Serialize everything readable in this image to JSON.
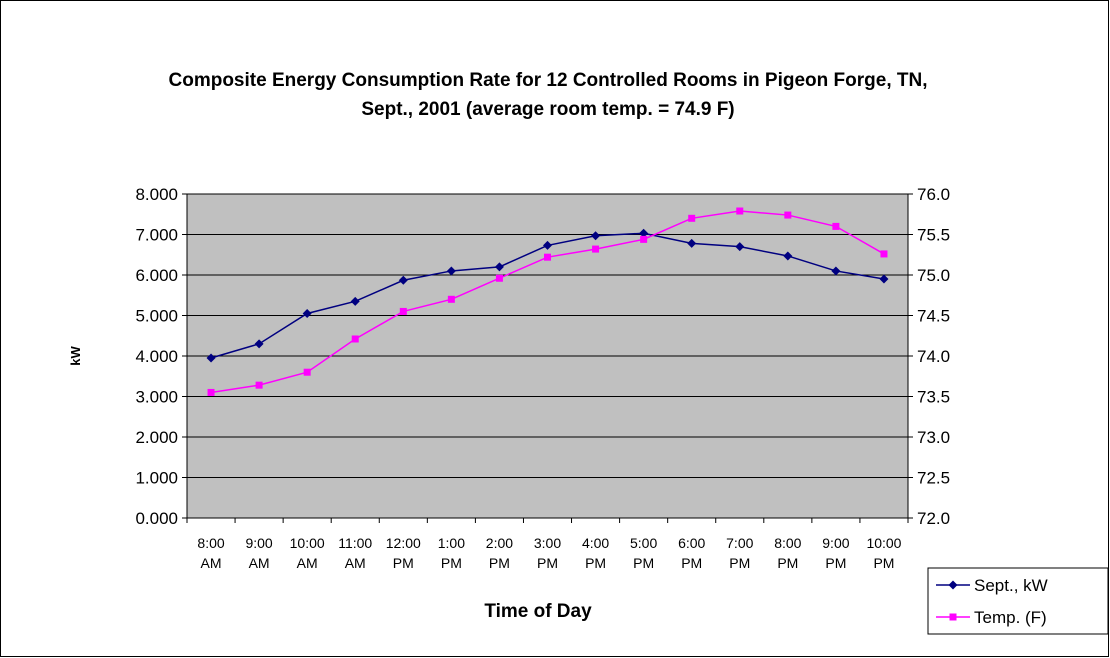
{
  "chart_data": {
    "type": "line",
    "title": "Composite Energy Consumption Rate for 12 Controlled Rooms in Pigeon Forge, TN, Sept., 2001 (average room temp. = 74.9 F)",
    "x_label": "Time of Day",
    "y_label": "kW",
    "categories": [
      "8:00 AM",
      "9:00 AM",
      "10:00 AM",
      "11:00 AM",
      "12:00 PM",
      "1:00 PM",
      "2:00 PM",
      "3:00 PM",
      "4:00 PM",
      "5:00 PM",
      "6:00 PM",
      "7:00 PM",
      "8:00 PM",
      "9:00 PM",
      "10:00 PM"
    ],
    "series": [
      {
        "name": "Sept., kW",
        "color": "#000080",
        "marker": "diamond",
        "values": [
          3.95,
          4.3,
          5.05,
          5.35,
          5.87,
          6.1,
          6.2,
          6.73,
          6.97,
          7.03,
          6.78,
          6.7,
          6.47,
          6.1,
          5.9
        ]
      },
      {
        "name": "Temp. (F)",
        "color": "#ff00ff",
        "marker": "square",
        "axis": "y2",
        "values": [
          73.55,
          73.64,
          73.8,
          74.21,
          74.55,
          74.7,
          74.96,
          75.22,
          75.32,
          75.44,
          75.7,
          75.79,
          75.74,
          75.6,
          75.26
        ]
      }
    ],
    "ylim": [
      0,
      8
    ],
    "yticks": [
      {
        "value": 0,
        "label": "0.000"
      },
      {
        "value": 1,
        "label": "1.000"
      },
      {
        "value": 2,
        "label": "2.000"
      },
      {
        "value": 3,
        "label": "3.000"
      },
      {
        "value": 4,
        "label": "4.000"
      },
      {
        "value": 5,
        "label": "5.000"
      },
      {
        "value": 6,
        "label": "6.000"
      },
      {
        "value": 7,
        "label": "7.000"
      },
      {
        "value": 8,
        "label": "8.000"
      }
    ],
    "y2lim": [
      72,
      76
    ],
    "y2ticks": [
      {
        "value": 72,
        "label": "72.0"
      },
      72.5,
      {
        "value": 73,
        "label": "73.0"
      },
      73.5,
      {
        "value": 74,
        "label": "74.0"
      },
      74.5,
      {
        "value": 75,
        "label": "75.0"
      },
      75.5,
      {
        "value": 76,
        "label": "76.0"
      }
    ],
    "grid": true,
    "plot_background": "#c0c0c0",
    "legend": "bottom-right"
  }
}
